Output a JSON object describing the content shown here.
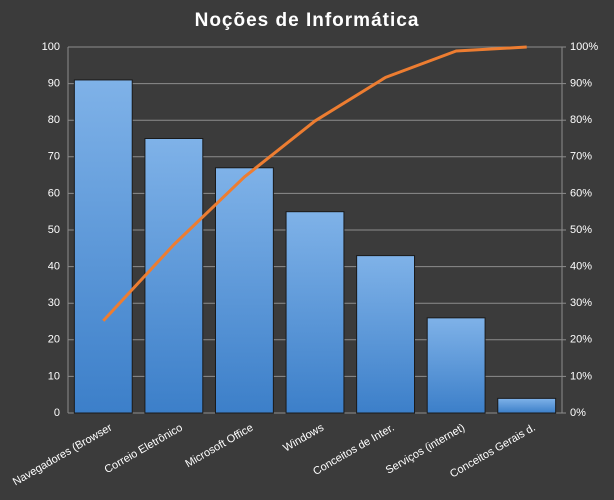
{
  "chart_data": {
    "type": "pareto",
    "title": "Noções de Informática",
    "categories": [
      "Navegadores (Browser",
      "Correio Eletrônico",
      "Microsoft Office",
      "Windows",
      "Conceitos de Inter.",
      "Serviços (internet)",
      "Conceitos Gerais d."
    ],
    "values": [
      91,
      75,
      67,
      55,
      43,
      26,
      4
    ],
    "color": "#4f93d8",
    "line": {
      "color": "#ed7d31",
      "axis": "y2",
      "values": [
        25.2,
        46.0,
        64.5,
        79.8,
        91.7,
        98.9,
        100
      ]
    },
    "ylim": [
      0,
      100
    ],
    "yticks": [
      0,
      10,
      20,
      30,
      40,
      50,
      60,
      70,
      80,
      90,
      100
    ],
    "y2lim": [
      0,
      100
    ],
    "y2ticks": [
      {
        "value": 0,
        "label": "0%"
      },
      {
        "value": 10,
        "label": "10%"
      },
      {
        "value": 20,
        "label": "20%"
      },
      {
        "value": 30,
        "label": "30%"
      },
      {
        "value": 40,
        "label": "40%"
      },
      {
        "value": 50,
        "label": "50%"
      },
      {
        "value": 60,
        "label": "60%"
      },
      {
        "value": 70,
        "label": "70%"
      },
      {
        "value": 80,
        "label": "80%"
      },
      {
        "value": 90,
        "label": "90%"
      },
      {
        "value": 100,
        "label": "100%"
      }
    ],
    "grid": true
  }
}
